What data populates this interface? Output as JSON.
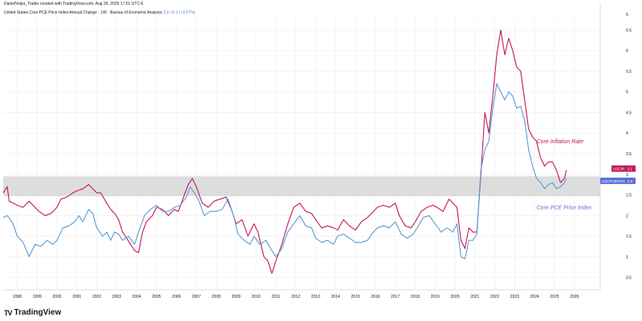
{
  "header": {
    "attribution": "DanielVeijia_Trader created with TradingView.com, Aug 29, 2025 17:01 UTC-6",
    "symbol_title": "United States Core PCE Price Index Annual Change · 1W · Bureau of Economic Analysis",
    "last_value": "2.9",
    "change": "+0.1 (+3.57%)"
  },
  "branding": {
    "logo_text": "TradingView",
    "logo_mark": "TV"
  },
  "colors": {
    "cpi_line": "#c2185b",
    "pce_line": "#5b9bd5",
    "pce_badge": "#5b6fd6",
    "band_fill": "#d9d9d9",
    "grid": "#eeeeee",
    "axis_text": "#131722"
  },
  "chart_data": {
    "type": "line",
    "xlabel": "",
    "ylabel": "",
    "xlim": [
      1997.3,
      2027.3
    ],
    "ylim": [
      0.2,
      6.8
    ],
    "x_ticks": [
      "1998",
      "1999",
      "2000",
      "2001",
      "2002",
      "2003",
      "2004",
      "2005",
      "2006",
      "2007",
      "2008",
      "2009",
      "2010",
      "2011",
      "2012",
      "2013",
      "2014",
      "2015",
      "2016",
      "2017",
      "2018",
      "2019",
      "2020",
      "2021",
      "2022",
      "2023",
      "2024",
      "2025",
      "2026"
    ],
    "y_ticks": [
      "0.5",
      "1",
      "1.5",
      "2",
      "2.5",
      "3",
      "3.5",
      "4",
      "4.5",
      "5",
      "5.5",
      "6",
      "6.5"
    ],
    "y_top_label": "5",
    "band": {
      "from": 2.47,
      "to": 2.95
    },
    "grid": true,
    "legend": "none",
    "annotations": [
      {
        "text": "Core Inflation Rate",
        "series": "USCIR",
        "x": 2024.1,
        "y": 3.75
      },
      {
        "text": "Core PCE Price Index",
        "series": "USCPCEPIAC",
        "x": 2024.1,
        "y": 2.15
      }
    ],
    "series": [
      {
        "name": "USCIR",
        "last_label": "3.1",
        "points": [
          [
            1997.3,
            2.55
          ],
          [
            1997.5,
            2.7
          ],
          [
            1997.6,
            2.35
          ],
          [
            1997.8,
            2.3
          ],
          [
            1998.0,
            2.25
          ],
          [
            1998.3,
            2.2
          ],
          [
            1998.6,
            2.35
          ],
          [
            1998.9,
            2.2
          ],
          [
            1999.1,
            2.1
          ],
          [
            1999.4,
            2.0
          ],
          [
            1999.7,
            2.05
          ],
          [
            2000.0,
            2.2
          ],
          [
            2000.2,
            2.4
          ],
          [
            2000.5,
            2.45
          ],
          [
            2000.8,
            2.55
          ],
          [
            2001.0,
            2.6
          ],
          [
            2001.3,
            2.65
          ],
          [
            2001.6,
            2.75
          ],
          [
            2001.8,
            2.65
          ],
          [
            2002.0,
            2.55
          ],
          [
            2002.2,
            2.55
          ],
          [
            2002.5,
            2.3
          ],
          [
            2002.7,
            2.15
          ],
          [
            2002.9,
            2.05
          ],
          [
            2003.1,
            1.9
          ],
          [
            2003.3,
            1.6
          ],
          [
            2003.5,
            1.45
          ],
          [
            2003.7,
            1.3
          ],
          [
            2003.9,
            1.15
          ],
          [
            2004.1,
            1.1
          ],
          [
            2004.3,
            1.6
          ],
          [
            2004.5,
            1.85
          ],
          [
            2004.8,
            2.0
          ],
          [
            2005.0,
            2.2
          ],
          [
            2005.3,
            2.15
          ],
          [
            2005.6,
            2.0
          ],
          [
            2005.9,
            2.15
          ],
          [
            2006.1,
            2.1
          ],
          [
            2006.4,
            2.5
          ],
          [
            2006.6,
            2.75
          ],
          [
            2006.8,
            2.9
          ],
          [
            2007.0,
            2.7
          ],
          [
            2007.3,
            2.3
          ],
          [
            2007.6,
            2.2
          ],
          [
            2007.9,
            2.35
          ],
          [
            2008.2,
            2.4
          ],
          [
            2008.5,
            2.45
          ],
          [
            2008.8,
            2.1
          ],
          [
            2009.0,
            1.8
          ],
          [
            2009.3,
            1.9
          ],
          [
            2009.6,
            1.5
          ],
          [
            2009.9,
            1.8
          ],
          [
            2010.1,
            1.6
          ],
          [
            2010.4,
            1.0
          ],
          [
            2010.6,
            0.9
          ],
          [
            2010.8,
            0.6
          ],
          [
            2011.0,
            0.9
          ],
          [
            2011.3,
            1.3
          ],
          [
            2011.6,
            1.8
          ],
          [
            2011.9,
            2.2
          ],
          [
            2012.2,
            2.3
          ],
          [
            2012.5,
            2.1
          ],
          [
            2012.8,
            2.05
          ],
          [
            2013.0,
            1.9
          ],
          [
            2013.3,
            1.7
          ],
          [
            2013.6,
            1.75
          ],
          [
            2013.9,
            1.7
          ],
          [
            2014.1,
            1.65
          ],
          [
            2014.4,
            1.9
          ],
          [
            2014.7,
            1.75
          ],
          [
            2015.0,
            1.65
          ],
          [
            2015.3,
            1.85
          ],
          [
            2015.6,
            1.95
          ],
          [
            2015.9,
            2.1
          ],
          [
            2016.1,
            2.2
          ],
          [
            2016.4,
            2.25
          ],
          [
            2016.7,
            2.2
          ],
          [
            2017.0,
            2.3
          ],
          [
            2017.2,
            2.0
          ],
          [
            2017.5,
            1.75
          ],
          [
            2017.8,
            1.7
          ],
          [
            2018.0,
            1.85
          ],
          [
            2018.3,
            2.1
          ],
          [
            2018.6,
            2.2
          ],
          [
            2018.9,
            2.25
          ],
          [
            2019.1,
            2.2
          ],
          [
            2019.4,
            2.1
          ],
          [
            2019.7,
            2.4
          ],
          [
            2019.9,
            2.3
          ],
          [
            2020.1,
            2.2
          ],
          [
            2020.3,
            1.4
          ],
          [
            2020.5,
            1.2
          ],
          [
            2020.7,
            1.7
          ],
          [
            2020.9,
            1.6
          ],
          [
            2021.1,
            1.6
          ],
          [
            2021.3,
            3.0
          ],
          [
            2021.5,
            4.5
          ],
          [
            2021.7,
            4.0
          ],
          [
            2021.9,
            4.9
          ],
          [
            2022.1,
            5.9
          ],
          [
            2022.3,
            6.5
          ],
          [
            2022.5,
            5.9
          ],
          [
            2022.7,
            6.3
          ],
          [
            2022.9,
            6.0
          ],
          [
            2023.1,
            5.6
          ],
          [
            2023.3,
            5.5
          ],
          [
            2023.5,
            4.8
          ],
          [
            2023.7,
            4.1
          ],
          [
            2023.9,
            3.9
          ],
          [
            2024.1,
            3.8
          ],
          [
            2024.3,
            3.4
          ],
          [
            2024.5,
            3.2
          ],
          [
            2024.7,
            3.3
          ],
          [
            2024.9,
            3.3
          ],
          [
            2025.1,
            3.1
          ],
          [
            2025.3,
            2.8
          ],
          [
            2025.5,
            2.9
          ],
          [
            2025.6,
            3.1
          ]
        ]
      },
      {
        "name": "USCPCEPIAC",
        "last_label": "2.9",
        "points": [
          [
            1997.3,
            1.95
          ],
          [
            1997.5,
            2.0
          ],
          [
            1997.8,
            1.8
          ],
          [
            1998.0,
            1.5
          ],
          [
            1998.3,
            1.35
          ],
          [
            1998.6,
            1.0
          ],
          [
            1998.9,
            1.3
          ],
          [
            1999.2,
            1.25
          ],
          [
            1999.5,
            1.4
          ],
          [
            1999.8,
            1.3
          ],
          [
            2000.0,
            1.4
          ],
          [
            2000.3,
            1.7
          ],
          [
            2000.6,
            1.75
          ],
          [
            2000.9,
            1.85
          ],
          [
            2001.1,
            2.0
          ],
          [
            2001.3,
            1.85
          ],
          [
            2001.6,
            2.15
          ],
          [
            2001.8,
            2.05
          ],
          [
            2002.0,
            1.7
          ],
          [
            2002.3,
            1.5
          ],
          [
            2002.5,
            1.6
          ],
          [
            2002.7,
            1.4
          ],
          [
            2002.9,
            1.6
          ],
          [
            2003.1,
            1.55
          ],
          [
            2003.3,
            1.4
          ],
          [
            2003.6,
            1.5
          ],
          [
            2003.9,
            1.3
          ],
          [
            2004.1,
            1.6
          ],
          [
            2004.4,
            2.0
          ],
          [
            2004.7,
            2.15
          ],
          [
            2005.0,
            2.25
          ],
          [
            2005.3,
            2.1
          ],
          [
            2005.6,
            2.1
          ],
          [
            2005.9,
            2.2
          ],
          [
            2006.2,
            2.25
          ],
          [
            2006.5,
            2.45
          ],
          [
            2006.7,
            2.7
          ],
          [
            2006.9,
            2.55
          ],
          [
            2007.1,
            2.4
          ],
          [
            2007.4,
            2.0
          ],
          [
            2007.7,
            2.1
          ],
          [
            2008.0,
            2.1
          ],
          [
            2008.3,
            2.15
          ],
          [
            2008.6,
            2.4
          ],
          [
            2008.9,
            1.95
          ],
          [
            2009.1,
            1.55
          ],
          [
            2009.4,
            1.4
          ],
          [
            2009.7,
            1.3
          ],
          [
            2009.9,
            1.5
          ],
          [
            2010.2,
            1.3
          ],
          [
            2010.5,
            1.4
          ],
          [
            2010.8,
            1.15
          ],
          [
            2011.0,
            1.0
          ],
          [
            2011.3,
            1.2
          ],
          [
            2011.6,
            1.6
          ],
          [
            2011.9,
            1.8
          ],
          [
            2012.2,
            2.0
          ],
          [
            2012.5,
            1.75
          ],
          [
            2012.8,
            1.7
          ],
          [
            2013.0,
            1.45
          ],
          [
            2013.3,
            1.35
          ],
          [
            2013.6,
            1.4
          ],
          [
            2013.9,
            1.3
          ],
          [
            2014.1,
            1.5
          ],
          [
            2014.4,
            1.55
          ],
          [
            2014.7,
            1.45
          ],
          [
            2015.0,
            1.35
          ],
          [
            2015.3,
            1.35
          ],
          [
            2015.6,
            1.4
          ],
          [
            2015.9,
            1.6
          ],
          [
            2016.1,
            1.7
          ],
          [
            2016.4,
            1.75
          ],
          [
            2016.7,
            1.7
          ],
          [
            2017.0,
            1.85
          ],
          [
            2017.3,
            1.55
          ],
          [
            2017.6,
            1.45
          ],
          [
            2017.9,
            1.55
          ],
          [
            2018.1,
            1.7
          ],
          [
            2018.4,
            1.95
          ],
          [
            2018.7,
            2.0
          ],
          [
            2019.0,
            1.8
          ],
          [
            2019.3,
            1.6
          ],
          [
            2019.6,
            1.7
          ],
          [
            2019.9,
            1.6
          ],
          [
            2020.1,
            1.8
          ],
          [
            2020.3,
            1.0
          ],
          [
            2020.5,
            0.95
          ],
          [
            2020.7,
            1.4
          ],
          [
            2020.9,
            1.4
          ],
          [
            2021.1,
            1.55
          ],
          [
            2021.3,
            3.1
          ],
          [
            2021.5,
            3.6
          ],
          [
            2021.7,
            3.8
          ],
          [
            2021.9,
            4.6
          ],
          [
            2022.1,
            5.2
          ],
          [
            2022.3,
            5.0
          ],
          [
            2022.5,
            4.8
          ],
          [
            2022.7,
            5.0
          ],
          [
            2022.9,
            4.9
          ],
          [
            2023.1,
            4.6
          ],
          [
            2023.3,
            4.65
          ],
          [
            2023.5,
            4.3
          ],
          [
            2023.7,
            3.6
          ],
          [
            2023.9,
            3.2
          ],
          [
            2024.1,
            2.9
          ],
          [
            2024.3,
            2.8
          ],
          [
            2024.5,
            2.65
          ],
          [
            2024.7,
            2.75
          ],
          [
            2024.9,
            2.8
          ],
          [
            2025.1,
            2.65
          ],
          [
            2025.3,
            2.7
          ],
          [
            2025.5,
            2.8
          ],
          [
            2025.6,
            2.9
          ]
        ]
      }
    ]
  }
}
